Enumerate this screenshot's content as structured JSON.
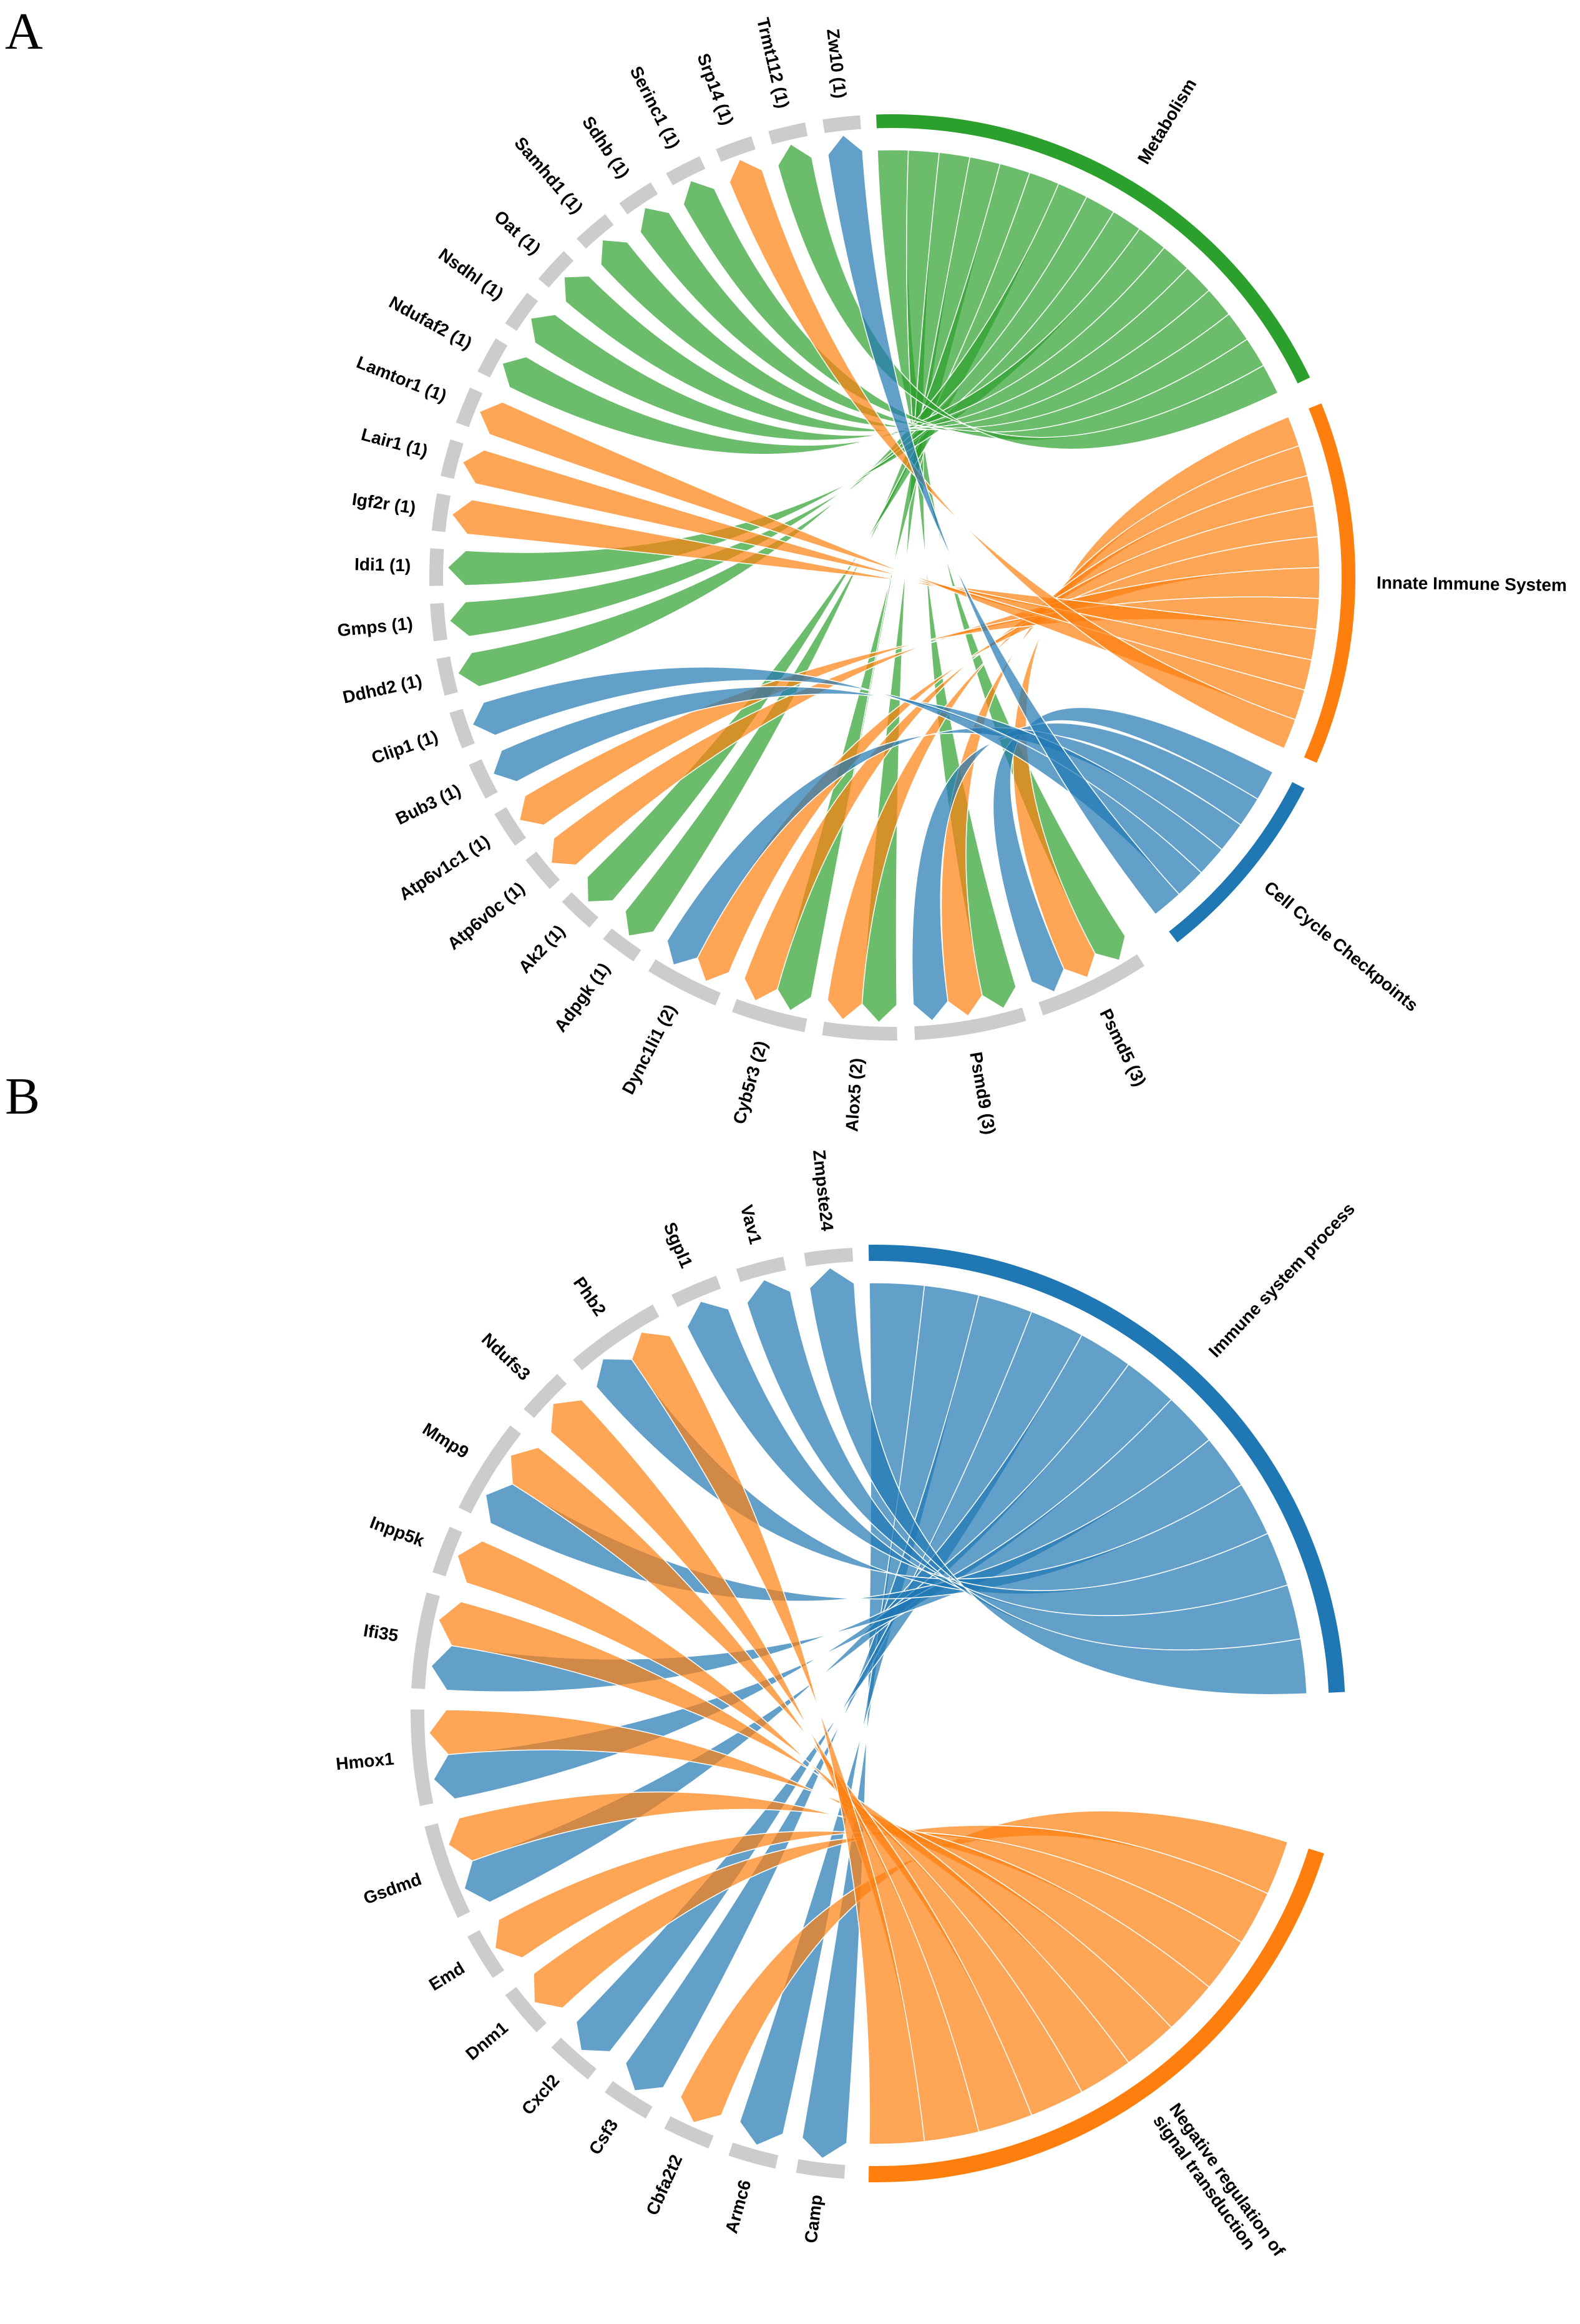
{
  "panels": [
    {
      "letter": "A",
      "categories": [
        {
          "name": "Metabolism",
          "color": "#2ca02c"
        },
        {
          "name": "Innate Immune System",
          "color": "#ff7f0e"
        },
        {
          "name": "Cell Cycle Checkpoints",
          "color": "#1f77b4"
        }
      ],
      "genes": [
        {
          "label": "Psmd5 (3)",
          "links": [
            "Metabolism",
            "Innate Immune System",
            "Cell Cycle Checkpoints"
          ]
        },
        {
          "label": "Psmd9 (3)",
          "links": [
            "Metabolism",
            "Innate Immune System",
            "Cell Cycle Checkpoints"
          ]
        },
        {
          "label": "Alox5 (2)",
          "links": [
            "Metabolism",
            "Innate Immune System"
          ]
        },
        {
          "label": "Cyb5r3 (2)",
          "links": [
            "Metabolism",
            "Innate Immune System"
          ]
        },
        {
          "label": "Dync1li1 (2)",
          "links": [
            "Innate Immune System",
            "Cell Cycle Checkpoints"
          ]
        },
        {
          "label": "Adpgk (1)",
          "links": [
            "Metabolism"
          ]
        },
        {
          "label": "Ak2 (1)",
          "links": [
            "Metabolism"
          ]
        },
        {
          "label": "Atp6v0c (1)",
          "links": [
            "Innate Immune System"
          ]
        },
        {
          "label": "Atp6v1c1 (1)",
          "links": [
            "Innate Immune System"
          ]
        },
        {
          "label": "Bub3 (1)",
          "links": [
            "Cell Cycle Checkpoints"
          ]
        },
        {
          "label": "Clip1 (1)",
          "links": [
            "Cell Cycle Checkpoints"
          ]
        },
        {
          "label": "Ddhd2 (1)",
          "links": [
            "Metabolism"
          ]
        },
        {
          "label": "Gmps (1)",
          "links": [
            "Metabolism"
          ]
        },
        {
          "label": "Idi1 (1)",
          "links": [
            "Metabolism"
          ]
        },
        {
          "label": "Igf2r (1)",
          "links": [
            "Innate Immune System"
          ]
        },
        {
          "label": "Lair1 (1)",
          "links": [
            "Innate Immune System"
          ]
        },
        {
          "label": "Lamtor1 (1)",
          "links": [
            "Innate Immune System"
          ]
        },
        {
          "label": "Ndufaf2 (1)",
          "links": [
            "Metabolism"
          ]
        },
        {
          "label": "Nsdhl (1)",
          "links": [
            "Metabolism"
          ]
        },
        {
          "label": "Oat (1)",
          "links": [
            "Metabolism"
          ]
        },
        {
          "label": "Samhd1 (1)",
          "links": [
            "Metabolism"
          ]
        },
        {
          "label": "Sdhb (1)",
          "links": [
            "Metabolism"
          ]
        },
        {
          "label": "Serinc1 (1)",
          "links": [
            "Metabolism"
          ]
        },
        {
          "label": "Srp14 (1)",
          "links": [
            "Innate Immune System"
          ]
        },
        {
          "label": "Trmt112 (1)",
          "links": [
            "Metabolism"
          ]
        },
        {
          "label": "Zw10 (1)",
          "links": [
            "Cell Cycle Checkpoints"
          ]
        }
      ]
    },
    {
      "letter": "B",
      "categories": [
        {
          "name": "Immune system process",
          "color": "#1f77b4"
        },
        {
          "name": "Negative regulation of signal transduction",
          "color": "#ff7f0e"
        }
      ],
      "category_label_lines": {
        "Immune system process": [
          "Immune system process"
        ],
        "Negative regulation of signal transduction": [
          "Negative regulation of",
          "signal transduction"
        ]
      },
      "genes": [
        {
          "label": "Camp",
          "links": [
            "Immune system process"
          ]
        },
        {
          "label": "Armc6",
          "links": [
            "Immune system process"
          ]
        },
        {
          "label": "Cbfa2t2",
          "links": [
            "Negative regulation of signal transduction"
          ]
        },
        {
          "label": "Csf3",
          "links": [
            "Immune system process"
          ]
        },
        {
          "label": "Cxcl2",
          "links": [
            "Immune system process"
          ]
        },
        {
          "label": "Dnm1",
          "links": [
            "Negative regulation of signal transduction"
          ]
        },
        {
          "label": "Emd",
          "links": [
            "Negative regulation of signal transduction"
          ]
        },
        {
          "label": "Gsdmd",
          "links": [
            "Immune system process",
            "Negative regulation of signal transduction"
          ]
        },
        {
          "label": "Hmox1",
          "links": [
            "Immune system process",
            "Negative regulation of signal transduction"
          ]
        },
        {
          "label": "Ifi35",
          "links": [
            "Immune system process",
            "Negative regulation of signal transduction"
          ]
        },
        {
          "label": "Inpp5k",
          "links": [
            "Negative regulation of signal transduction"
          ]
        },
        {
          "label": "Mmp9",
          "links": [
            "Immune system process",
            "Negative regulation of signal transduction"
          ]
        },
        {
          "label": "Ndufs3",
          "links": [
            "Negative regulation of signal transduction"
          ]
        },
        {
          "label": "Phb2",
          "links": [
            "Immune system process",
            "Negative regulation of signal transduction"
          ]
        },
        {
          "label": "Sgpl1",
          "links": [
            "Immune system process"
          ]
        },
        {
          "label": "Vav1",
          "links": [
            "Immune system process"
          ]
        },
        {
          "label": "Zmpste24",
          "links": [
            "Immune system process"
          ]
        }
      ]
    }
  ]
}
